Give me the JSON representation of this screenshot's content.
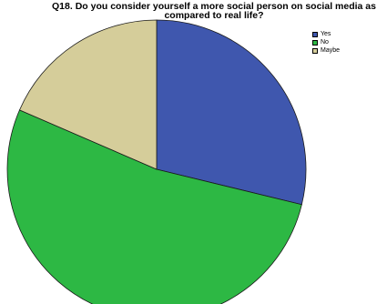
{
  "chart_data": {
    "type": "pie",
    "title_line1": "Q18. Do you consider yourself a more social person on social media as",
    "title_line2": "compared to real life?",
    "slices": [
      {
        "label": "Yes",
        "value": 28.8,
        "color": "#3f57ae"
      },
      {
        "label": "No",
        "value": 52.7,
        "color": "#2db844"
      },
      {
        "label": "Maybe",
        "value": 18.5,
        "color": "#d5cd9a"
      }
    ],
    "start_angle": "12 o'clock",
    "direction": "clockwise",
    "legend_position": "top-right"
  }
}
